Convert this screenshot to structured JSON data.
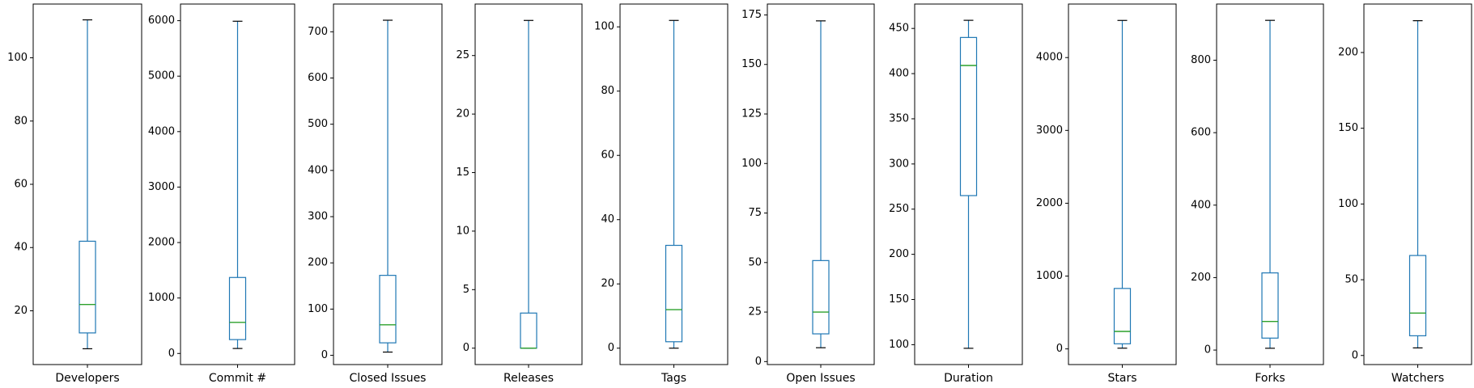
{
  "chart_data": {
    "type": "boxplot",
    "colors": {
      "box": "#1f77b4",
      "whisker": "#1f77b4",
      "cap": "#000000",
      "median": "#2ca02c",
      "frame": "#000000"
    },
    "panels": [
      {
        "category": "Developers",
        "stats": {
          "min": 8,
          "q1": 13,
          "median": 22,
          "q3": 42,
          "max": 112
        },
        "ylim": [
          3,
          117
        ],
        "yticks": [
          20,
          40,
          60,
          80,
          100
        ]
      },
      {
        "category": "Commit #",
        "stats": {
          "min": 90,
          "q1": 250,
          "median": 560,
          "q3": 1370,
          "max": 5990
        },
        "ylim": [
          -200,
          6300
        ],
        "yticks": [
          0,
          1000,
          2000,
          3000,
          4000,
          5000,
          6000
        ]
      },
      {
        "category": "Closed Issues",
        "stats": {
          "min": 7,
          "q1": 27,
          "median": 66,
          "q3": 173,
          "max": 725
        },
        "ylim": [
          -20,
          760
        ],
        "yticks": [
          0,
          100,
          200,
          300,
          400,
          500,
          600,
          700
        ]
      },
      {
        "category": "Releases",
        "stats": {
          "min": 0,
          "q1": 0,
          "median": 0,
          "q3": 3,
          "max": 28
        },
        "ylim": [
          -1.4,
          29.4
        ],
        "yticks": [
          0,
          5,
          10,
          15,
          20,
          25
        ]
      },
      {
        "category": "Tags",
        "stats": {
          "min": 0,
          "q1": 2,
          "median": 12,
          "q3": 32,
          "max": 102
        },
        "ylim": [
          -5.1,
          107.1
        ],
        "yticks": [
          0,
          20,
          40,
          60,
          80,
          100
        ]
      },
      {
        "category": "Open Issues",
        "stats": {
          "min": 7,
          "q1": 14,
          "median": 25,
          "q3": 51,
          "max": 172
        },
        "ylim": [
          -1.5,
          180.5
        ],
        "yticks": [
          0,
          25,
          50,
          75,
          100,
          125,
          150,
          175
        ]
      },
      {
        "category": "Duration",
        "stats": {
          "min": 96,
          "q1": 265,
          "median": 409,
          "q3": 440,
          "max": 459
        },
        "ylim": [
          78,
          477
        ],
        "yticks": [
          100,
          150,
          200,
          250,
          300,
          350,
          400,
          450
        ]
      },
      {
        "category": "Stars",
        "stats": {
          "min": 10,
          "q1": 70,
          "median": 240,
          "q3": 830,
          "max": 4510
        },
        "ylim": [
          -215,
          4735
        ],
        "yticks": [
          0,
          1000,
          2000,
          3000,
          4000
        ]
      },
      {
        "category": "Forks",
        "stats": {
          "min": 5,
          "q1": 33,
          "median": 79,
          "q3": 213,
          "max": 910
        },
        "ylim": [
          -40,
          955
        ],
        "yticks": [
          0,
          200,
          400,
          600,
          800
        ]
      },
      {
        "category": "Watchers",
        "stats": {
          "min": 5,
          "q1": 13,
          "median": 28,
          "q3": 66,
          "max": 221
        },
        "ylim": [
          -6,
          232
        ],
        "yticks": [
          0,
          50,
          100,
          150,
          200
        ]
      }
    ]
  }
}
